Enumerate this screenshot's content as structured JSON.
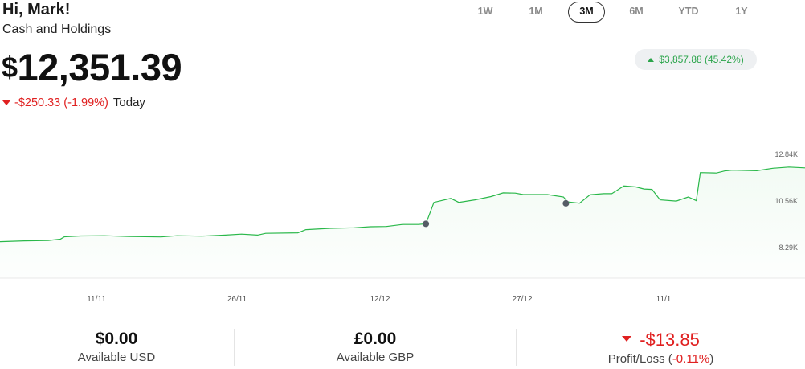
{
  "header": {
    "greeting": "Hi, Mark!",
    "subtitle": "Cash and Holdings",
    "balance_currency": "$",
    "balance_amount": "12,351.39",
    "day_change": "-$250.33",
    "day_change_pct": "(-1.99%)",
    "day_label": "Today"
  },
  "range_selector": {
    "options": [
      "1W",
      "1M",
      "3M",
      "6M",
      "YTD",
      "1Y"
    ],
    "selected": "3M"
  },
  "period_change": {
    "amount": "$3,857.88",
    "pct": "(45.42%)",
    "color": "#2aa44a"
  },
  "chart_data": {
    "type": "area",
    "x_tick_labels": [
      "11/11",
      "26/11",
      "12/12",
      "27/12",
      "11/1"
    ],
    "y_tick_labels": [
      "12.84K",
      "10.56K",
      "8.29K"
    ],
    "yticks": [
      12840,
      10560,
      8290
    ],
    "ylim": [
      8290,
      12840
    ],
    "x_range": [
      0,
      100
    ],
    "line_color": "#2ab84a",
    "values": [
      [
        0,
        8580
      ],
      [
        3,
        8620
      ],
      [
        6,
        8640
      ],
      [
        7.5,
        8700
      ],
      [
        8,
        8820
      ],
      [
        10,
        8860
      ],
      [
        13,
        8870
      ],
      [
        16,
        8830
      ],
      [
        20,
        8810
      ],
      [
        22,
        8870
      ],
      [
        25,
        8850
      ],
      [
        28,
        8900
      ],
      [
        30,
        8950
      ],
      [
        32,
        8900
      ],
      [
        33,
        8990
      ],
      [
        37,
        9010
      ],
      [
        38,
        9170
      ],
      [
        41,
        9230
      ],
      [
        44,
        9260
      ],
      [
        46,
        9310
      ],
      [
        48,
        9320
      ],
      [
        50,
        9420
      ],
      [
        52,
        9420
      ],
      [
        52.9,
        9450
      ],
      [
        53.9,
        10500
      ],
      [
        56,
        10690
      ],
      [
        57,
        10500
      ],
      [
        59,
        10620
      ],
      [
        61,
        10780
      ],
      [
        62.5,
        10960
      ],
      [
        64,
        10950
      ],
      [
        65,
        10880
      ],
      [
        68,
        10880
      ],
      [
        70,
        10760
      ],
      [
        70.5,
        10520
      ],
      [
        72,
        10460
      ],
      [
        73.3,
        10870
      ],
      [
        75,
        10920
      ],
      [
        76,
        10920
      ],
      [
        77.5,
        11300
      ],
      [
        79,
        11250
      ],
      [
        80,
        11150
      ],
      [
        81,
        11130
      ],
      [
        82,
        10620
      ],
      [
        84,
        10560
      ],
      [
        85.5,
        10760
      ],
      [
        86.5,
        10580
      ],
      [
        87,
        11950
      ],
      [
        89,
        11930
      ],
      [
        90,
        12030
      ],
      [
        91,
        12070
      ],
      [
        94,
        12040
      ],
      [
        96,
        12160
      ],
      [
        98,
        12220
      ],
      [
        100,
        12180
      ]
    ],
    "markers": [
      [
        52.9,
        9450
      ],
      [
        70.3,
        10450
      ]
    ]
  },
  "summary": {
    "usd": {
      "value": "$0.00",
      "label": "Available USD"
    },
    "gbp": {
      "value": "£0.00",
      "label": "Available GBP"
    },
    "pl": {
      "value": "-$13.85",
      "label_a": "Profit/Loss",
      "label_pct": "-0.11%",
      "label_open": " (",
      "label_close": ")"
    }
  }
}
